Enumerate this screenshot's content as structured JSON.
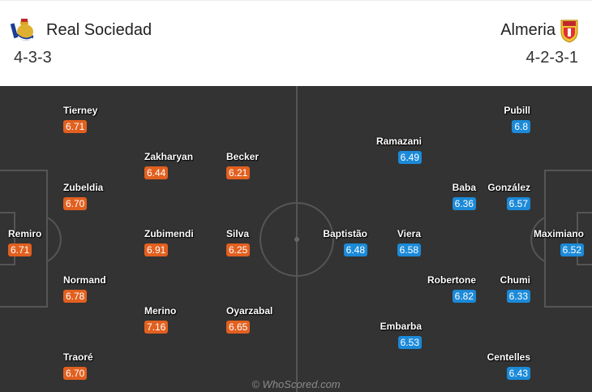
{
  "home": {
    "name": "Real Sociedad",
    "formation": "4-3-3",
    "crest_icon": "real-sociedad-crest",
    "color": "#e2601f",
    "players": [
      {
        "name": "Tierney",
        "rating": "6.71"
      },
      {
        "name": "Zakharyan",
        "rating": "6.44"
      },
      {
        "name": "Becker",
        "rating": "6.21"
      },
      {
        "name": "Zubeldia",
        "rating": "6.70"
      },
      {
        "name": "Remiro",
        "rating": "6.71"
      },
      {
        "name": "Zubimendi",
        "rating": "6.91"
      },
      {
        "name": "Silva",
        "rating": "6.25"
      },
      {
        "name": "Normand",
        "rating": "6.78"
      },
      {
        "name": "Merino",
        "rating": "7.16"
      },
      {
        "name": "Oyarzabal",
        "rating": "6.65"
      },
      {
        "name": "Traoré",
        "rating": "6.70"
      }
    ]
  },
  "away": {
    "name": "Almeria",
    "formation": "4-2-3-1",
    "crest_icon": "almeria-crest",
    "color": "#1b8ad8",
    "players": [
      {
        "name": "Pubill",
        "rating": "6.8"
      },
      {
        "name": "Ramazani",
        "rating": "6.49"
      },
      {
        "name": "Baba",
        "rating": "6.36"
      },
      {
        "name": "González",
        "rating": "6.57"
      },
      {
        "name": "Baptistão",
        "rating": "6.48"
      },
      {
        "name": "Viera",
        "rating": "6.58"
      },
      {
        "name": "Maximiano",
        "rating": "6.52"
      },
      {
        "name": "Robertone",
        "rating": "6.82"
      },
      {
        "name": "Chumi",
        "rating": "6.33"
      },
      {
        "name": "Embarba",
        "rating": "6.53"
      },
      {
        "name": "Centelles",
        "rating": "6.43"
      }
    ]
  },
  "watermark": "© WhoScored.com"
}
